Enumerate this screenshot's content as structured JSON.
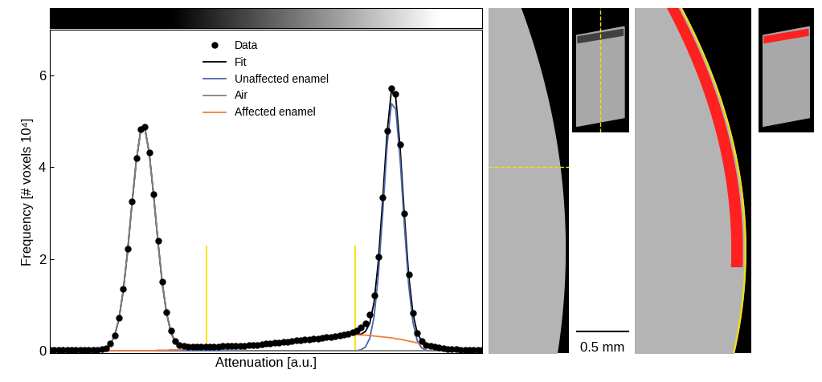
{
  "chart_data": {
    "type": "line",
    "x_label": "Attenuation [a.u.]",
    "y_label": "Frequency [# voxels 10⁴]",
    "xlim": [
      0,
      100
    ],
    "xticks": [],
    "ylim": [
      -0.05,
      7.0
    ],
    "yticks": [
      0,
      2,
      4,
      6
    ],
    "tick_labels": "y",
    "legend": "upper center",
    "x": [
      0,
      1,
      2,
      3,
      4,
      5,
      6,
      7,
      8,
      9,
      10,
      11,
      12,
      13,
      14,
      15,
      16,
      17,
      18,
      19,
      20,
      21,
      22,
      23,
      24,
      25,
      26,
      27,
      28,
      29,
      30,
      31,
      32,
      33,
      34,
      35,
      36,
      37,
      38,
      39,
      40,
      41,
      42,
      43,
      44,
      45,
      46,
      47,
      48,
      49,
      50,
      51,
      52,
      53,
      54,
      55,
      56,
      57,
      58,
      59,
      60,
      61,
      62,
      63,
      64,
      65,
      66,
      67,
      68,
      69,
      70,
      71,
      72,
      73,
      74,
      75,
      76,
      77,
      78,
      79,
      80,
      81,
      82,
      83,
      84,
      85,
      86,
      87,
      88,
      89,
      90,
      91,
      92,
      93,
      94,
      95,
      96,
      97,
      98,
      99,
      100
    ],
    "thresholds": [
      {
        "x": 36.2,
        "top": 2.3
      },
      {
        "x": 70.6,
        "top": 2.3
      }
    ],
    "series": [
      {
        "name": "Data",
        "type": "scatter",
        "color": "#000000",
        "marker": "o",
        "line_style": "none",
        "values": [
          0.02,
          0.02,
          0.02,
          0.02,
          0.02,
          0.02,
          0.02,
          0.02,
          0.02,
          0.02,
          0.02,
          0.02,
          0.03,
          0.06,
          0.15,
          0.34,
          0.72,
          1.35,
          2.22,
          3.25,
          4.2,
          4.83,
          4.88,
          4.33,
          3.42,
          2.4,
          1.5,
          0.84,
          0.43,
          0.21,
          0.12,
          0.1,
          0.09,
          0.09,
          0.09,
          0.09,
          0.09,
          0.09,
          0.09,
          0.09,
          0.1,
          0.1,
          0.1,
          0.1,
          0.11,
          0.11,
          0.12,
          0.12,
          0.13,
          0.14,
          0.15,
          0.16,
          0.17,
          0.18,
          0.19,
          0.2,
          0.21,
          0.22,
          0.23,
          0.24,
          0.25,
          0.26,
          0.27,
          0.28,
          0.29,
          0.3,
          0.31,
          0.33,
          0.35,
          0.37,
          0.4,
          0.44,
          0.5,
          0.6,
          0.78,
          1.2,
          2.05,
          3.35,
          4.8,
          5.72,
          5.6,
          4.5,
          3.0,
          1.66,
          0.82,
          0.39,
          0.21,
          0.13,
          0.1,
          0.08,
          0.07,
          0.05,
          0.04,
          0.03,
          0.03,
          0.02,
          0.02,
          0.02,
          0.02,
          0.02,
          0.02
        ]
      },
      {
        "name": "Fit",
        "type": "line",
        "color": "#000000",
        "marker": "none",
        "line_style": "solid",
        "values": [
          0,
          0,
          0,
          0,
          0,
          0,
          0,
          0,
          0,
          0,
          0,
          0,
          0.02,
          0.05,
          0.14,
          0.33,
          0.7,
          1.32,
          2.18,
          3.2,
          4.14,
          4.79,
          4.85,
          4.3,
          3.4,
          2.39,
          1.48,
          0.82,
          0.41,
          0.19,
          0.1,
          0.09,
          0.08,
          0.08,
          0.08,
          0.08,
          0.08,
          0.08,
          0.09,
          0.08,
          0.09,
          0.09,
          0.09,
          0.1,
          0.1,
          0.11,
          0.11,
          0.12,
          0.13,
          0.14,
          0.15,
          0.16,
          0.17,
          0.18,
          0.19,
          0.2,
          0.21,
          0.22,
          0.23,
          0.24,
          0.25,
          0.26,
          0.27,
          0.28,
          0.29,
          0.3,
          0.31,
          0.32,
          0.33,
          0.34,
          0.35,
          0.35,
          0.36,
          0.42,
          0.6,
          1.06,
          1.97,
          3.31,
          4.75,
          5.67,
          5.53,
          4.45,
          2.96,
          1.64,
          0.8,
          0.38,
          0.21,
          0.14,
          0.11,
          0.09,
          0.08,
          0.06,
          0.05,
          0.04,
          0.03,
          0.02,
          0.02,
          0.01,
          0.01,
          0.0,
          0.0
        ]
      },
      {
        "name": "Unaffected enamel",
        "type": "line",
        "color": "#4a67a8",
        "marker": "none",
        "line_style": "solid",
        "values": [
          0,
          0,
          0,
          0,
          0,
          0,
          0,
          0,
          0,
          0,
          0,
          0,
          0,
          0,
          0,
          0,
          0,
          0,
          0,
          0,
          0,
          0,
          0,
          0,
          0,
          0,
          0,
          0,
          0,
          0,
          0,
          0,
          0,
          0,
          0,
          0,
          0,
          0,
          0,
          0,
          0,
          0,
          0,
          0,
          0,
          0,
          0,
          0,
          0,
          0,
          0,
          0,
          0,
          0,
          0,
          0,
          0,
          0,
          0,
          0,
          0,
          0,
          0,
          0,
          0,
          0,
          0,
          0,
          0,
          0,
          0,
          0,
          0.02,
          0.08,
          0.27,
          0.74,
          1.66,
          3.01,
          4.46,
          5.39,
          5.27,
          4.2,
          2.73,
          1.43,
          0.61,
          0.21,
          0.06,
          0.01,
          0,
          0,
          0,
          0,
          0,
          0,
          0,
          0,
          0,
          0,
          0,
          0,
          0
        ]
      },
      {
        "name": "Air",
        "type": "line",
        "color": "#808080",
        "marker": "none",
        "line_style": "solid",
        "values": [
          0,
          0,
          0,
          0,
          0,
          0,
          0,
          0,
          0,
          0,
          0,
          0,
          0.02,
          0.05,
          0.14,
          0.33,
          0.7,
          1.32,
          2.18,
          3.2,
          4.14,
          4.79,
          4.85,
          4.3,
          3.4,
          2.38,
          1.47,
          0.81,
          0.39,
          0.17,
          0.08,
          0.06,
          0.05,
          0.05,
          0.04,
          0.04,
          0.03,
          0.03,
          0.03,
          0.02,
          0.02,
          0.02,
          0.01,
          0.01,
          0.01,
          0.01,
          0,
          0,
          0,
          0,
          0,
          0,
          0,
          0,
          0,
          0,
          0,
          0,
          0,
          0,
          0,
          0,
          0,
          0,
          0,
          0,
          0,
          0,
          0,
          0,
          0,
          0,
          0,
          0,
          0,
          0,
          0,
          0,
          0,
          0,
          0,
          0,
          0,
          0,
          0,
          0,
          0,
          0,
          0,
          0,
          0,
          0,
          0,
          0,
          0,
          0,
          0,
          0,
          0,
          0,
          0
        ]
      },
      {
        "name": "Affected enamel",
        "type": "line",
        "color": "#f07f3b",
        "marker": "none",
        "line_style": "solid",
        "values": [
          0,
          0,
          0,
          0,
          0,
          0,
          0,
          0,
          0,
          0,
          0,
          0,
          0,
          0,
          0,
          0,
          0,
          0,
          0,
          0,
          0,
          0,
          0,
          0,
          0,
          0.01,
          0.01,
          0.01,
          0.02,
          0.02,
          0.02,
          0.03,
          0.03,
          0.03,
          0.04,
          0.04,
          0.05,
          0.05,
          0.06,
          0.06,
          0.07,
          0.07,
          0.08,
          0.09,
          0.09,
          0.1,
          0.11,
          0.12,
          0.13,
          0.14,
          0.15,
          0.16,
          0.17,
          0.18,
          0.19,
          0.2,
          0.21,
          0.22,
          0.23,
          0.24,
          0.25,
          0.26,
          0.27,
          0.28,
          0.29,
          0.3,
          0.31,
          0.32,
          0.33,
          0.34,
          0.35,
          0.35,
          0.34,
          0.34,
          0.33,
          0.32,
          0.31,
          0.3,
          0.29,
          0.28,
          0.26,
          0.25,
          0.23,
          0.21,
          0.19,
          0.17,
          0.15,
          0.13,
          0.11,
          0.09,
          0.08,
          0.06,
          0.05,
          0.04,
          0.03,
          0.02,
          0.02,
          0.01,
          0.01,
          0.0,
          0.0
        ]
      }
    ]
  },
  "images": {
    "scale_bar": "0.5 mm"
  }
}
